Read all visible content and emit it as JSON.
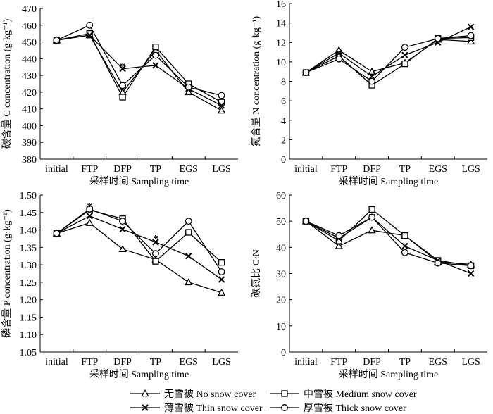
{
  "figure": {
    "legend": {
      "items": [
        {
          "label": "无雪被 No snow cover",
          "marker": "triangle"
        },
        {
          "label": "中雪被 Medium snow cover",
          "marker": "square"
        },
        {
          "label": "薄雪被 Thin snow cover",
          "marker": "x"
        },
        {
          "label": "厚雪被 Thick snow cover",
          "marker": "circle"
        }
      ]
    }
  },
  "chart_data": [
    {
      "type": "line",
      "ylabel": "碳含量 C concentration (g·kg⁻¹)",
      "xlabel": "采样时间 Sampling time",
      "categories": [
        "initial",
        "FTP",
        "DFP",
        "TP",
        "EGS",
        "LGS"
      ],
      "ylim": [
        380,
        470
      ],
      "yticks": [
        380,
        390,
        400,
        410,
        420,
        430,
        440,
        450,
        460,
        470
      ],
      "ytick_labels": [
        "380",
        "390",
        "400",
        "410",
        "420",
        "430",
        "440",
        "450",
        "460",
        "470"
      ],
      "series": [
        {
          "marker": "triangle",
          "values": [
            451,
            454,
            420,
            445,
            420,
            409
          ]
        },
        {
          "marker": "square",
          "values": [
            451,
            455,
            417,
            447,
            425,
            414
          ]
        },
        {
          "marker": "x",
          "values": [
            451,
            454,
            434,
            436,
            422,
            412
          ]
        },
        {
          "marker": "circle",
          "values": [
            451,
            460,
            424,
            442,
            423,
            418
          ]
        }
      ],
      "annotations": [
        {
          "text": "*",
          "category": "DFP",
          "y": 436
        }
      ]
    },
    {
      "type": "line",
      "ylabel": "氮含量 N concentration (g·kg⁻¹)",
      "xlabel": "采样时间 Sampling time",
      "categories": [
        "initial",
        "FTP",
        "DFP",
        "TP",
        "EGS",
        "LGS"
      ],
      "ylim": [
        0,
        16
      ],
      "yticks": [
        0,
        2,
        4,
        6,
        8,
        10,
        12,
        14,
        16
      ],
      "ytick_labels": [
        "0",
        "2",
        "4",
        "6",
        "8",
        "10",
        "12",
        "14",
        "16"
      ],
      "series": [
        {
          "marker": "triangle",
          "values": [
            8.9,
            11.2,
            9.0,
            9.9,
            12.3,
            12.1
          ]
        },
        {
          "marker": "square",
          "values": [
            8.9,
            10.6,
            7.6,
            9.8,
            12.4,
            12.5
          ]
        },
        {
          "marker": "x",
          "values": [
            8.9,
            10.9,
            8.5,
            10.7,
            12.0,
            13.6
          ]
        },
        {
          "marker": "circle",
          "values": [
            8.9,
            10.3,
            8.0,
            11.5,
            12.4,
            12.7
          ]
        }
      ],
      "annotations": []
    },
    {
      "type": "line",
      "ylabel": "磷含量 P concentration (g·kg⁻¹)",
      "xlabel": "采样时间 Sampling time",
      "categories": [
        "initial",
        "FTP",
        "DFP",
        "TP",
        "EGS",
        "LGS"
      ],
      "ylim": [
        1.05,
        1.5
      ],
      "yticks": [
        1.05,
        1.1,
        1.15,
        1.2,
        1.25,
        1.3,
        1.35,
        1.4,
        1.45,
        1.5
      ],
      "ytick_labels": [
        "1.05",
        "1.10",
        "1.15",
        "1.20",
        "1.25",
        "1.30",
        "1.35",
        "1.40",
        "1.45",
        "1.50"
      ],
      "series": [
        {
          "marker": "triangle",
          "values": [
            1.39,
            1.42,
            1.345,
            1.315,
            1.25,
            1.22
          ]
        },
        {
          "marker": "square",
          "values": [
            1.39,
            1.457,
            1.432,
            1.31,
            1.393,
            1.307
          ]
        },
        {
          "marker": "x",
          "values": [
            1.39,
            1.44,
            1.402,
            1.365,
            1.325,
            1.258
          ]
        },
        {
          "marker": "circle",
          "values": [
            1.39,
            1.46,
            1.425,
            1.332,
            1.425,
            1.28
          ]
        }
      ],
      "annotations": [
        {
          "text": "*",
          "category": "FTP",
          "y": 1.47
        },
        {
          "text": "*",
          "category": "TP",
          "y": 1.378
        }
      ]
    },
    {
      "type": "line",
      "ylabel": "碳氮比 C:N",
      "xlabel": "采样时间 Sampling time",
      "categories": [
        "initial",
        "FTP",
        "DFP",
        "TP",
        "EGS",
        "LGS"
      ],
      "ylim": [
        0,
        60
      ],
      "yticks": [
        0,
        10,
        20,
        30,
        40,
        50,
        60
      ],
      "ytick_labels": [
        "0",
        "10",
        "20",
        "30",
        "40",
        "50",
        "60"
      ],
      "series": [
        {
          "marker": "triangle",
          "values": [
            50,
            40.5,
            46.5,
            44.5,
            34.5,
            33.5
          ]
        },
        {
          "marker": "square",
          "values": [
            50,
            42.5,
            54.5,
            44.5,
            35,
            33
          ]
        },
        {
          "marker": "x",
          "values": [
            50,
            43.5,
            51.5,
            40.5,
            35,
            30
          ]
        },
        {
          "marker": "circle",
          "values": [
            50,
            44.5,
            51.5,
            38,
            34,
            33
          ]
        }
      ],
      "annotations": []
    }
  ]
}
